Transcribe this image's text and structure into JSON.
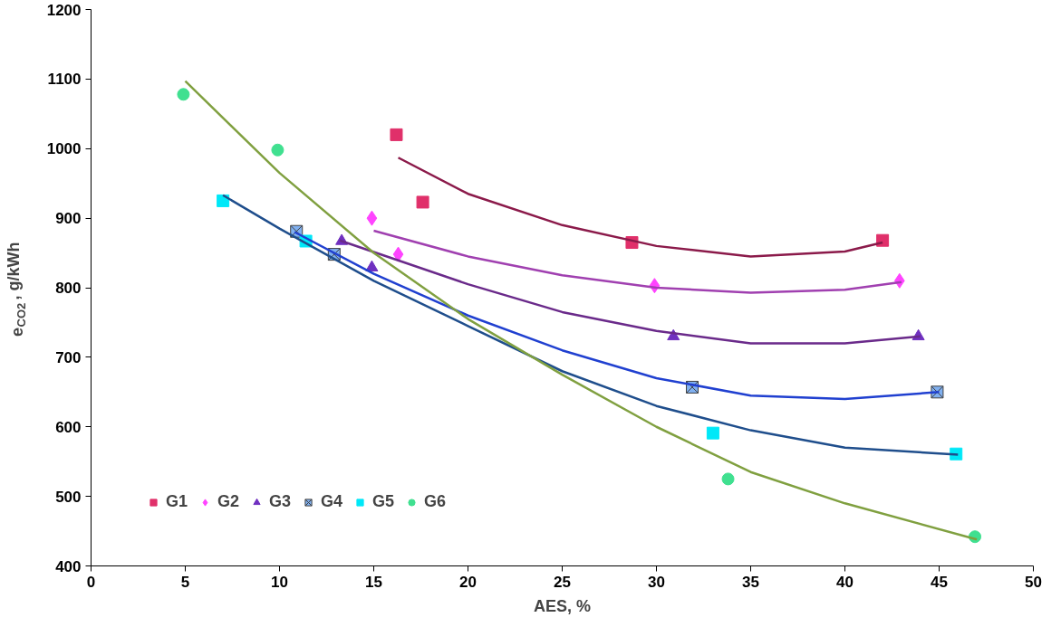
{
  "chart_data": {
    "type": "scatter",
    "xlabel": "AES, %",
    "ylabel": "e$_{CO2}$, g/kWh",
    "xlim": [
      0,
      50
    ],
    "xticks": [
      0,
      5,
      10,
      15,
      20,
      25,
      30,
      35,
      40,
      45,
      50
    ],
    "ylim": [
      400,
      1200
    ],
    "yticks": [
      400,
      500,
      600,
      700,
      800,
      900,
      1000,
      1100,
      1200
    ],
    "grid": false,
    "legend": "bottom left",
    "series": [
      {
        "name": "G1",
        "color": "#e0306a",
        "marker": "square",
        "x": [
          16.2,
          17.6,
          28.7,
          42
        ],
        "values": [
          1020,
          923,
          865,
          868
        ]
      },
      {
        "name": "G2",
        "color": "#ff44ff",
        "marker": "diamond",
        "x": [
          14.9,
          16.3,
          29.9,
          42.9
        ],
        "values": [
          900,
          848,
          803,
          810
        ]
      },
      {
        "name": "G3",
        "color": "#7030c0",
        "marker": "triangle",
        "x": [
          13.3,
          14.9,
          30.9,
          43.9
        ],
        "values": [
          867,
          829,
          730,
          730
        ]
      },
      {
        "name": "G4",
        "color": "#80b0f0",
        "marker": "cross",
        "x": [
          10.9,
          12.9,
          31.9,
          44.9
        ],
        "values": [
          881,
          848,
          657,
          650
        ]
      },
      {
        "name": "G5",
        "color": "#00e8f8",
        "marker": "square",
        "x": [
          7,
          11.4,
          33,
          45.9
        ],
        "values": [
          925,
          867,
          591,
          561
        ]
      },
      {
        "name": "G6",
        "color": "#40e090",
        "marker": "circle",
        "x": [
          4.9,
          9.9,
          33.8,
          46.9
        ],
        "values": [
          1078,
          998,
          525,
          442
        ]
      },
      {
        "type": "line",
        "color": "#8b1a4a",
        "x": [
          16.3,
          20,
          25,
          30,
          35,
          40,
          42
        ],
        "values": [
          987,
          935,
          890,
          860,
          845,
          852,
          865
        ]
      },
      {
        "type": "line",
        "color": "#a040b0",
        "x": [
          15,
          20,
          25,
          30,
          35,
          40,
          43
        ],
        "values": [
          882,
          845,
          818,
          800,
          793,
          797,
          808
        ]
      },
      {
        "type": "line",
        "color": "#6a2a8a",
        "x": [
          13.2,
          20,
          25,
          30,
          35,
          40,
          44
        ],
        "values": [
          868,
          805,
          765,
          738,
          720,
          720,
          730
        ]
      },
      {
        "type": "line",
        "color": "#2040d0",
        "x": [
          10.8,
          15,
          20,
          25,
          30,
          35,
          40,
          45
        ],
        "values": [
          880,
          820,
          760,
          710,
          670,
          645,
          640,
          650
        ]
      },
      {
        "type": "line",
        "color": "#1f4e8c",
        "x": [
          7,
          10,
          15,
          20,
          25,
          30,
          35,
          40,
          46
        ],
        "values": [
          933,
          885,
          810,
          745,
          680,
          630,
          595,
          570,
          560
        ]
      },
      {
        "type": "line",
        "color": "#80a040",
        "x": [
          5,
          10,
          15,
          20,
          25,
          30,
          35,
          40,
          47
        ],
        "values": [
          1097,
          965,
          850,
          755,
          675,
          600,
          535,
          490,
          438
        ]
      }
    ]
  }
}
